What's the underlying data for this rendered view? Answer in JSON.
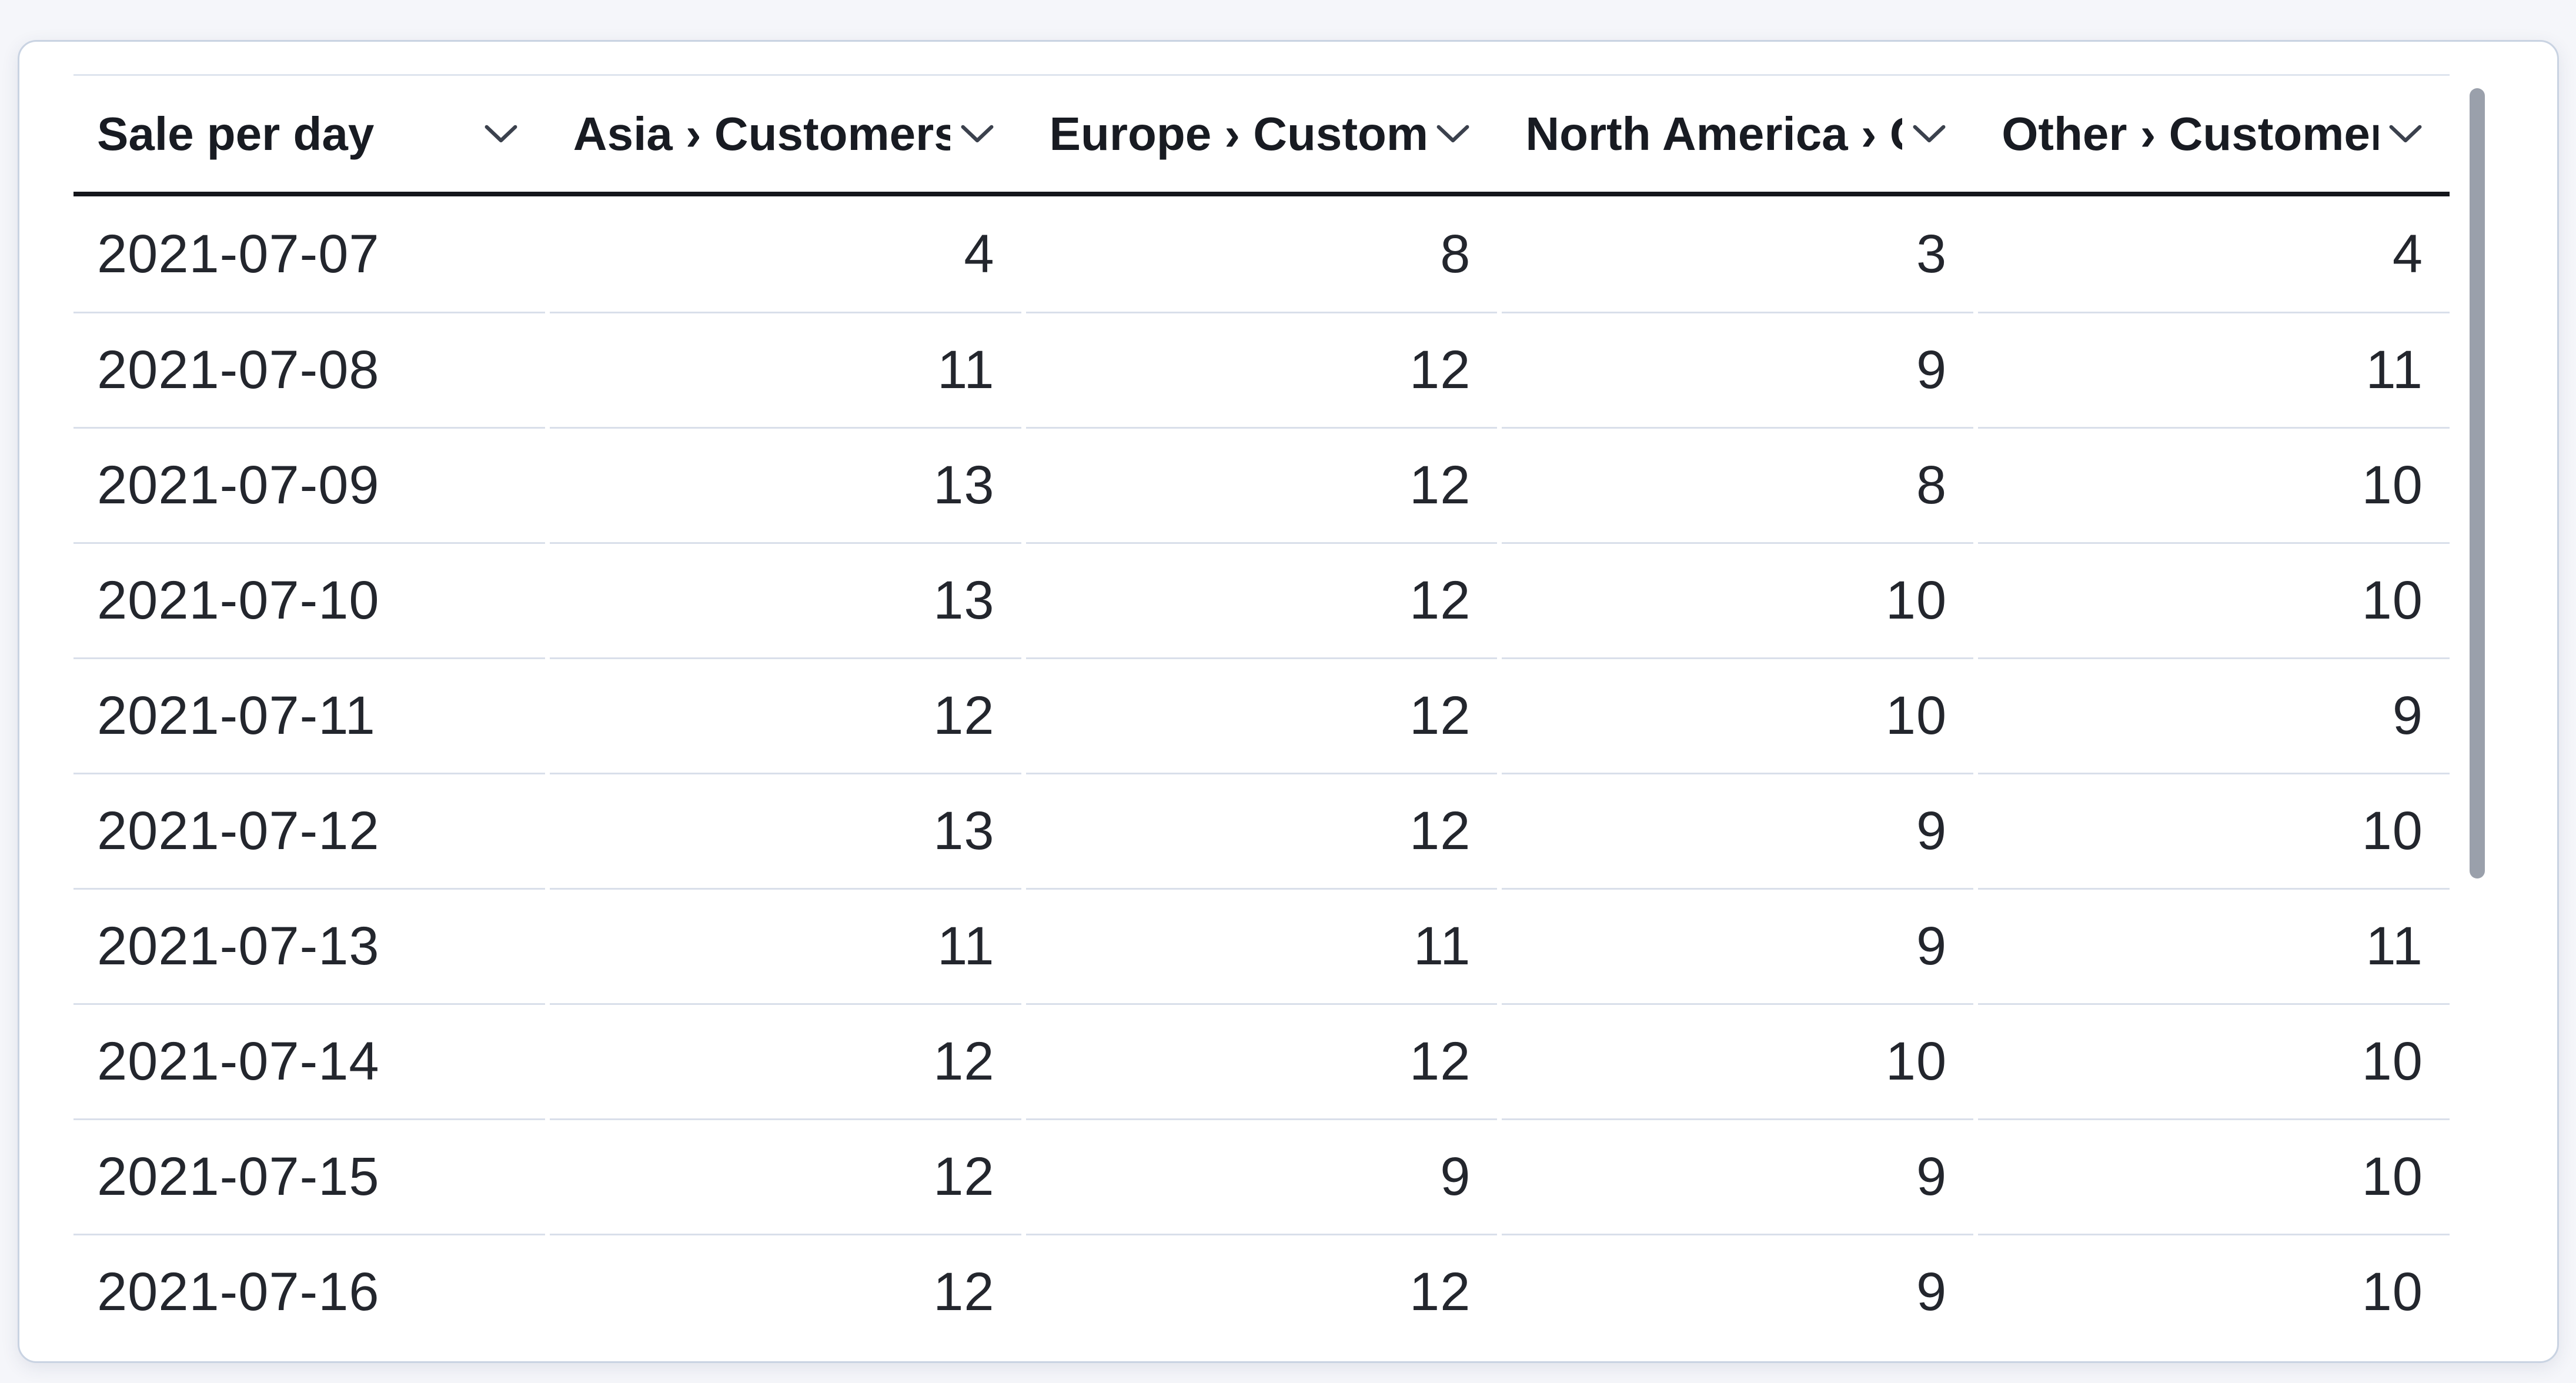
{
  "table": {
    "title": "Sale per day",
    "header": {
      "sort_icon": "chevron-down",
      "columns": [
        {
          "label": "Sale per day"
        },
        {
          "label": "Asia › Customers"
        },
        {
          "label": "Europe › Customers"
        },
        {
          "label": "North America › Customers"
        },
        {
          "label": "Other › Customers"
        }
      ]
    },
    "rows": [
      {
        "date": "2021-07-07",
        "values": [
          "4",
          "8",
          "3",
          "4"
        ]
      },
      {
        "date": "2021-07-08",
        "values": [
          "11",
          "12",
          "9",
          "11"
        ]
      },
      {
        "date": "2021-07-09",
        "values": [
          "13",
          "12",
          "8",
          "10"
        ]
      },
      {
        "date": "2021-07-10",
        "values": [
          "13",
          "12",
          "10",
          "10"
        ]
      },
      {
        "date": "2021-07-11",
        "values": [
          "12",
          "12",
          "10",
          "9"
        ]
      },
      {
        "date": "2021-07-12",
        "values": [
          "13",
          "12",
          "9",
          "10"
        ]
      },
      {
        "date": "2021-07-13",
        "values": [
          "11",
          "11",
          "9",
          "11"
        ]
      },
      {
        "date": "2021-07-14",
        "values": [
          "12",
          "12",
          "10",
          "10"
        ]
      },
      {
        "date": "2021-07-15",
        "values": [
          "12",
          "9",
          "9",
          "10"
        ]
      },
      {
        "date": "2021-07-16",
        "values": [
          "12",
          "12",
          "9",
          "10"
        ]
      }
    ]
  },
  "scrollbar": {
    "orientation": "vertical",
    "visible": true
  },
  "colors": {
    "page_background": "#f5f6fa",
    "card_background": "#ffffff",
    "card_border": "#c9d3e2",
    "table_top_line": "#dee4ee",
    "header_underline": "#14161b",
    "row_separator": "#d9dfea",
    "header_text": "#181b22",
    "body_text": "#23262d",
    "scrollbar_thumb": "#9aa0ab",
    "chevron": "#3b414d"
  }
}
